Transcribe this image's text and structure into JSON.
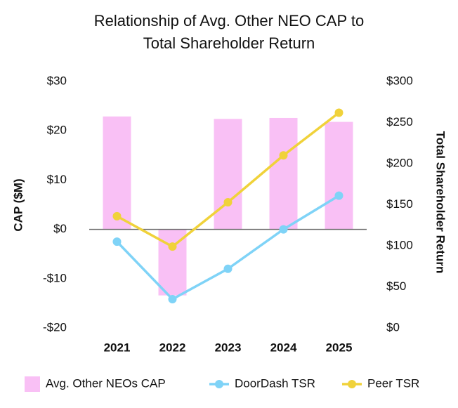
{
  "chart_data": {
    "type": "bar_line",
    "title": "Relationship of Avg. Other NEO CAP to",
    "subtitle": "Total Shareholder Return",
    "y_label": "CAP ($M)",
    "y2_label": "Total Shareholder Return",
    "categories": [
      "2021",
      "2022",
      "2023",
      "2024",
      "2025"
    ],
    "ylim": [
      -20,
      30
    ],
    "yticks": [
      {
        "value": 30,
        "label": "$30"
      },
      {
        "value": 20,
        "label": "$20"
      },
      {
        "value": 10,
        "label": "$10"
      },
      {
        "value": 0,
        "label": "$0"
      },
      {
        "value": -10,
        "label": "-$10"
      },
      {
        "value": -20,
        "label": "-$20"
      }
    ],
    "y2lim": [
      0,
      300
    ],
    "y2ticks": [
      {
        "value": 300,
        "label": "$300"
      },
      {
        "value": 250,
        "label": "$250"
      },
      {
        "value": 200,
        "label": "$200"
      },
      {
        "value": 150,
        "label": "$150"
      },
      {
        "value": 100,
        "label": "$100"
      },
      {
        "value": 50,
        "label": "$50"
      },
      {
        "value": 0,
        "label": "$0"
      }
    ],
    "series": [
      {
        "name": "Avg. Other NEOs CAP",
        "kind": "bar",
        "color": "#f9c0f5",
        "values": [
          22.9,
          -13.4,
          22.4,
          22.6,
          21.8
        ]
      },
      {
        "name": "DoorDash TSR",
        "kind": "line",
        "axis": "y2",
        "color": "#7fd3f7",
        "values": [
          105,
          35,
          72,
          120,
          161
        ]
      },
      {
        "name": "Peer TSR",
        "kind": "line",
        "axis": "y2",
        "color": "#f0d23a",
        "values": [
          136,
          99,
          153,
          210,
          262
        ]
      }
    ]
  }
}
